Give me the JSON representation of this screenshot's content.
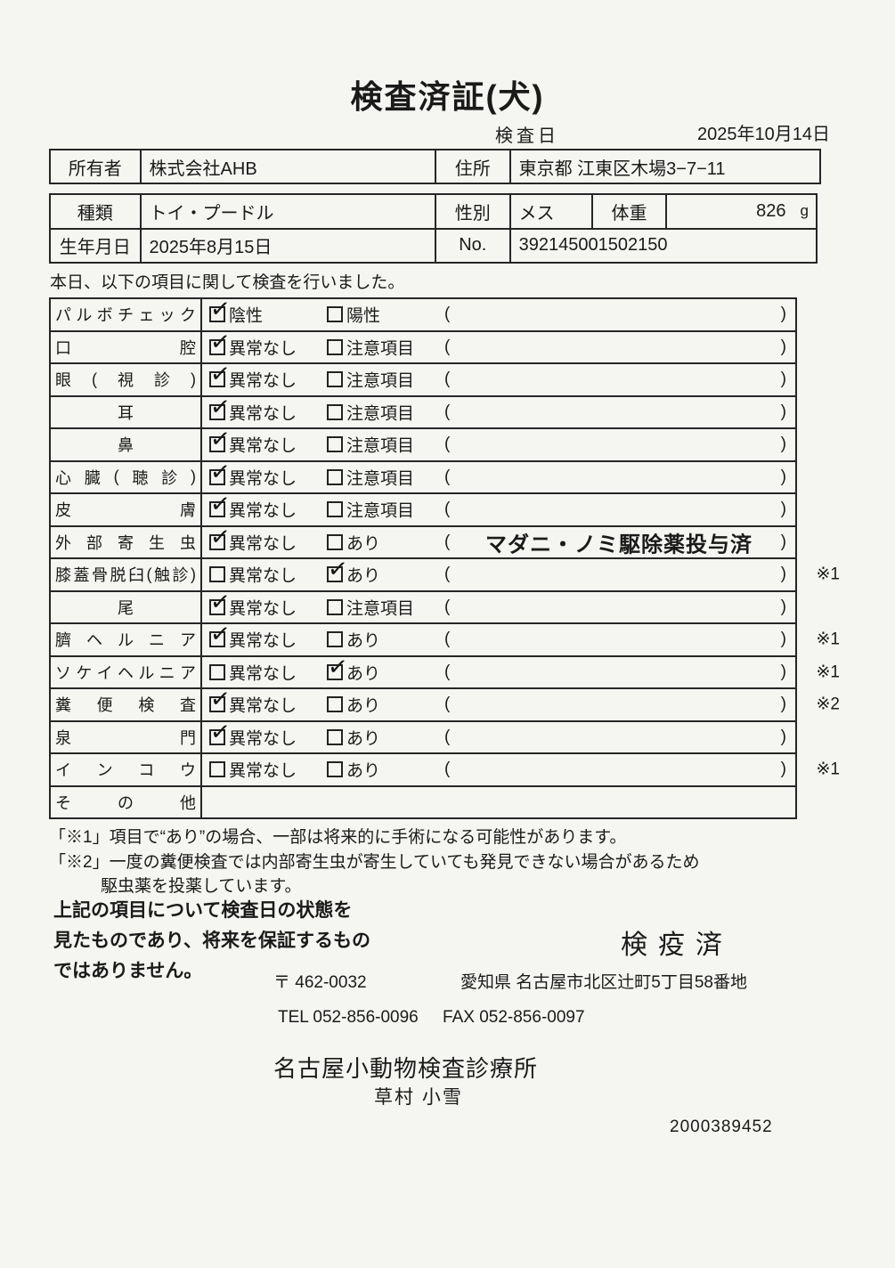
{
  "document": {
    "title": "検査済証(犬)",
    "inspection_date_label": "検査日",
    "inspection_date_value": "2025年10月14日",
    "intro_text": "本日、以下の項目に関して検査を行いました。"
  },
  "owner_table": {
    "owner_label": "所有者",
    "owner_value": "株式会社AHB",
    "address_label": "住所",
    "address_value": "東京都 江東区木場3−7−11"
  },
  "animal_table": {
    "breed_label": "種類",
    "breed_value": "トイ・プードル",
    "sex_label": "性別",
    "sex_value": "メス",
    "weight_label": "体重",
    "weight_value": "826",
    "weight_unit": "g",
    "birthdate_label": "生年月日",
    "birthdate_value": "2025年8月15日",
    "no_label": "No.",
    "no_value": "392145001502150"
  },
  "inspection_table": {
    "paren_open": "(",
    "paren_close": ")",
    "rows": [
      {
        "label": "パルボチェック",
        "opt1": "陰性",
        "opt1_checked": true,
        "opt2": "陽性",
        "opt2_checked": false,
        "paren_text": "",
        "note": "",
        "has_options": true,
        "has_paren": true
      },
      {
        "label": "口腔",
        "opt1": "異常なし",
        "opt1_checked": true,
        "opt2": "注意項目",
        "opt2_checked": false,
        "paren_text": "",
        "note": "",
        "has_options": true,
        "has_paren": true
      },
      {
        "label": "眼(視診)",
        "opt1": "異常なし",
        "opt1_checked": true,
        "opt2": "注意項目",
        "opt2_checked": false,
        "paren_text": "",
        "note": "",
        "has_options": true,
        "has_paren": true
      },
      {
        "label": "耳",
        "opt1": "異常なし",
        "opt1_checked": true,
        "opt2": "注意項目",
        "opt2_checked": false,
        "paren_text": "",
        "note": "",
        "has_options": true,
        "has_paren": true
      },
      {
        "label": "鼻",
        "opt1": "異常なし",
        "opt1_checked": true,
        "opt2": "注意項目",
        "opt2_checked": false,
        "paren_text": "",
        "note": "",
        "has_options": true,
        "has_paren": true
      },
      {
        "label": "心臓(聴診)",
        "opt1": "異常なし",
        "opt1_checked": true,
        "opt2": "注意項目",
        "opt2_checked": false,
        "paren_text": "",
        "note": "",
        "has_options": true,
        "has_paren": true
      },
      {
        "label": "皮膚",
        "opt1": "異常なし",
        "opt1_checked": true,
        "opt2": "注意項目",
        "opt2_checked": false,
        "paren_text": "",
        "note": "",
        "has_options": true,
        "has_paren": true
      },
      {
        "label": "外部寄生虫",
        "opt1": "異常なし",
        "opt1_checked": true,
        "opt2": "あり",
        "opt2_checked": false,
        "paren_text": "マダニ・ノミ駆除薬投与済",
        "note": "",
        "has_options": true,
        "has_paren": true
      },
      {
        "label": "膝蓋骨脱臼(触診)",
        "opt1": "異常なし",
        "opt1_checked": false,
        "opt2": "あり",
        "opt2_checked": true,
        "paren_text": "",
        "note": "※1",
        "has_options": true,
        "has_paren": true
      },
      {
        "label": "尾",
        "opt1": "異常なし",
        "opt1_checked": true,
        "opt2": "注意項目",
        "opt2_checked": false,
        "paren_text": "",
        "note": "",
        "has_options": true,
        "has_paren": true
      },
      {
        "label": "臍ヘルニア",
        "opt1": "異常なし",
        "opt1_checked": true,
        "opt2": "あり",
        "opt2_checked": false,
        "paren_text": "",
        "note": "※1",
        "has_options": true,
        "has_paren": true
      },
      {
        "label": "ソケイヘルニア",
        "opt1": "異常なし",
        "opt1_checked": false,
        "opt2": "あり",
        "opt2_checked": true,
        "paren_text": "",
        "note": "※1",
        "has_options": true,
        "has_paren": true
      },
      {
        "label": "糞便検査",
        "opt1": "異常なし",
        "opt1_checked": true,
        "opt2": "あり",
        "opt2_checked": false,
        "paren_text": "",
        "note": "※2",
        "has_options": true,
        "has_paren": true
      },
      {
        "label": "泉門",
        "opt1": "異常なし",
        "opt1_checked": true,
        "opt2": "あり",
        "opt2_checked": false,
        "paren_text": "",
        "note": "",
        "has_options": true,
        "has_paren": true
      },
      {
        "label": "インコウ",
        "opt1": "異常なし",
        "opt1_checked": false,
        "opt2": "あり",
        "opt2_checked": false,
        "paren_text": "",
        "note": "※1",
        "has_options": true,
        "has_paren": true
      },
      {
        "label": "その他",
        "opt1": "",
        "opt1_checked": false,
        "opt2": "",
        "opt2_checked": false,
        "paren_text": "",
        "note": "",
        "has_options": false,
        "has_paren": false
      }
    ]
  },
  "notes": {
    "note1": "「※1」項目で“あり”の場合、一部は将来的に手術になる可能性があります。",
    "note2_line1": "「※2」一度の糞便検査では内部寄生虫が寄生していても発見できない場合があるため",
    "note2_line2": "駆虫薬を投薬しています。"
  },
  "disclaimer": {
    "line1": "上記の項目について検査日の状態を",
    "line2": "見たものであり、将来を保証するもの",
    "line3": "ではありません。"
  },
  "stamp": {
    "text": "検疫済"
  },
  "footer": {
    "postal": "〒 462-0032",
    "address": "愛知県 名古屋市北区辻町5丁目58番地",
    "tel": "TEL 052-856-0096",
    "fax": "FAX 052-856-0097",
    "clinic_name": "名古屋小動物検査診療所",
    "veterinarian": "草村 小雪",
    "serial_number": "2000389452"
  },
  "colors": {
    "paper": "#f5f5f2",
    "ink": "#1a1a1a",
    "border": "#262626"
  }
}
